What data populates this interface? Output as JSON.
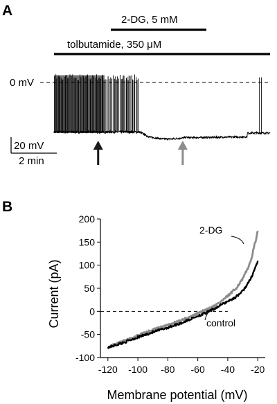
{
  "chart_data": [
    {
      "type": "line",
      "panel": "A",
      "title": "",
      "treatments": [
        {
          "label": "2-DG, 5 mM",
          "start_min": 6.2,
          "end_min": 15.5
        },
        {
          "label": "tolbutamide, 350 μM",
          "start_min": 0,
          "end_min": 23.5
        }
      ],
      "reference_line": {
        "label": "0 mV",
        "value_mV": 0
      },
      "scalebar": {
        "voltage_label": "20 mV",
        "time_label": "2 min"
      },
      "markers": [
        {
          "name": "arrow-early",
          "time_min": 4.8,
          "color": "#1a1a1a"
        },
        {
          "name": "arrow-late",
          "time_min": 14.0,
          "color": "#8c8c8c"
        }
      ],
      "trace": {
        "color": "#000000",
        "phases": [
          {
            "name": "bursting",
            "t": [
              0,
              9.3
            ],
            "baseline_mV": -48,
            "spike_peak_mV": 8
          },
          {
            "name": "hyperpolarized",
            "t": [
              9.3,
              23.5
            ],
            "baseline_mV": -53
          },
          {
            "name": "recovery-spikes",
            "t": [
              22.3,
              22.7
            ],
            "spike_peak_mV": 5
          }
        ]
      }
    },
    {
      "type": "line",
      "panel": "B",
      "title": "",
      "xlabel": "Membrane potential (mV)",
      "ylabel": "Current (pA)",
      "xlim": [
        -125,
        -15
      ],
      "ylim": [
        -100,
        200
      ],
      "x_ticks": [
        -120,
        -100,
        -80,
        -60,
        -40,
        -20
      ],
      "y_ticks": [
        -100,
        -50,
        0,
        50,
        100,
        150,
        200
      ],
      "reference_line": {
        "value_pA": 0,
        "style": "dashed"
      },
      "grid": false,
      "series": [
        {
          "name": "2-DG",
          "color": "#8c8c8c",
          "x": [
            -120,
            -110,
            -100,
            -90,
            -80,
            -70,
            -60,
            -55,
            -50,
            -45,
            -40,
            -35,
            -30,
            -25,
            -20
          ],
          "y": [
            -78,
            -65,
            -52,
            -40,
            -30,
            -18,
            -5,
            3,
            10,
            20,
            33,
            48,
            70,
            105,
            172
          ]
        },
        {
          "name": "control",
          "color": "#000000",
          "x": [
            -120,
            -110,
            -100,
            -90,
            -80,
            -70,
            -60,
            -55,
            -50,
            -45,
            -40,
            -35,
            -30,
            -25,
            -20
          ],
          "y": [
            -78,
            -68,
            -56,
            -45,
            -35,
            -24,
            -10,
            -4,
            4,
            13,
            22,
            30,
            44,
            68,
            108
          ]
        }
      ]
    }
  ]
}
